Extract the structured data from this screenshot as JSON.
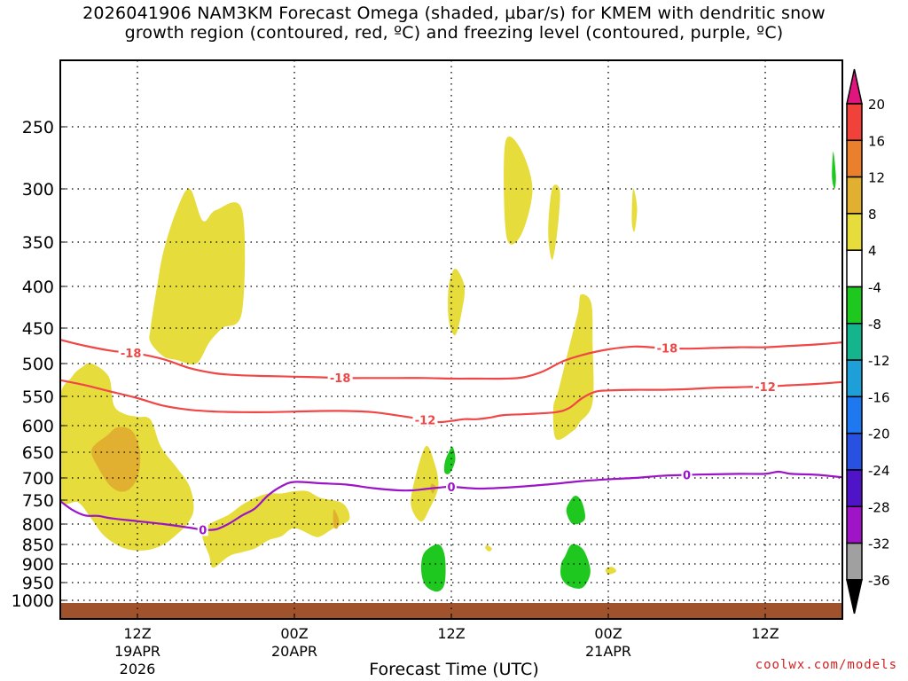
{
  "title": {
    "line1": "2026041906 NAM3KM Forecast Omega (shaded, µbar/s) for KMEM with dendritic snow",
    "line2": "growth region (contoured, red, ºC) and freezing level (contoured, purple, ºC)"
  },
  "credit": "coolwx.com/models",
  "chart_data": {
    "type": "time-height cross section",
    "xlabel": "Forecast Time (UTC)",
    "y_axis": {
      "unit": "hPa",
      "ticks": [
        250,
        300,
        350,
        400,
        450,
        500,
        550,
        600,
        650,
        700,
        750,
        800,
        850,
        900,
        950,
        1000
      ],
      "range": [
        200,
        1020
      ],
      "grid": "dotted"
    },
    "x_axis": {
      "range_hours_utc": [
        6,
        66
      ],
      "ticks": [
        {
          "hour": 12,
          "labels": [
            "12Z",
            "19APR",
            "2026"
          ]
        },
        {
          "hour": 24,
          "labels": [
            "00Z",
            "20APR"
          ]
        },
        {
          "hour": 36,
          "labels": [
            "12Z"
          ]
        },
        {
          "hour": 48,
          "labels": [
            "00Z",
            "21APR"
          ]
        },
        {
          "hour": 60,
          "labels": [
            "12Z"
          ]
        }
      ]
    },
    "colorbar": {
      "unit": "µbar/s",
      "labels": [
        "20",
        "16",
        "12",
        "8",
        "4",
        "-4",
        "-8",
        "-12",
        "-16",
        "-20",
        "-24",
        "-28",
        "-32",
        "-36"
      ],
      "colors": {
        "above_20": "#e0157d",
        "16_20": "#f0413a",
        "12_16": "#ea7f2c",
        "8_12": "#e1b030",
        "4_8": "#e6dc3c",
        "m4_4": "#ffffff",
        "m8_m4": "#1ec81e",
        "m12_m8": "#14b48c",
        "m16_m12": "#1e9fd7",
        "m20_m16": "#1e78ef",
        "m24_m20": "#2850e1",
        "m28_m24": "#5014c8",
        "m32_m28": "#a014c8",
        "m36_m32": "#a0a0a0",
        "below_m36": "#000000"
      }
    },
    "contours": {
      "minus18_C": {
        "label": "-18",
        "color": "#f04646",
        "points": [
          [
            6,
            466
          ],
          [
            8,
            475
          ],
          [
            10,
            482
          ],
          [
            12,
            486
          ],
          [
            14,
            494
          ],
          [
            16,
            507
          ],
          [
            18,
            515
          ],
          [
            20,
            518
          ],
          [
            22,
            519
          ],
          [
            24,
            520
          ],
          [
            26,
            521
          ],
          [
            28,
            522
          ],
          [
            30,
            522
          ],
          [
            32,
            522
          ],
          [
            34,
            522
          ],
          [
            36,
            523
          ],
          [
            38,
            523
          ],
          [
            40,
            523
          ],
          [
            41.5,
            521
          ],
          [
            43,
            512
          ],
          [
            44.5,
            497
          ],
          [
            46,
            488
          ],
          [
            48,
            480
          ],
          [
            50,
            476
          ],
          [
            52,
            478
          ],
          [
            54,
            479
          ],
          [
            56,
            478
          ],
          [
            58,
            477
          ],
          [
            60,
            477
          ],
          [
            62,
            475
          ],
          [
            64,
            473
          ],
          [
            66,
            470
          ]
        ]
      },
      "minus12_C": {
        "label": "-12",
        "color": "#f04646",
        "points": [
          [
            6,
            525
          ],
          [
            8,
            533
          ],
          [
            10,
            543
          ],
          [
            12,
            553
          ],
          [
            14,
            566
          ],
          [
            16,
            573
          ],
          [
            18,
            576
          ],
          [
            20,
            577
          ],
          [
            22,
            577
          ],
          [
            24,
            576
          ],
          [
            26,
            575
          ],
          [
            28,
            575
          ],
          [
            30,
            577
          ],
          [
            32,
            583
          ],
          [
            34,
            590
          ],
          [
            35,
            594
          ],
          [
            36,
            592
          ],
          [
            37,
            589
          ],
          [
            38,
            589
          ],
          [
            39,
            586
          ],
          [
            40,
            582
          ],
          [
            42,
            580
          ],
          [
            44,
            577
          ],
          [
            45,
            570
          ],
          [
            46,
            553
          ],
          [
            47,
            543
          ],
          [
            48,
            541
          ],
          [
            50,
            540
          ],
          [
            52,
            540
          ],
          [
            54,
            539
          ],
          [
            56,
            537
          ],
          [
            58,
            536
          ],
          [
            60,
            535
          ],
          [
            62,
            533
          ],
          [
            64,
            531
          ],
          [
            66,
            528
          ]
        ]
      },
      "freezing_level_0_C": {
        "label": "0",
        "color": "#9b14c8",
        "points": [
          [
            6,
            750
          ],
          [
            7,
            770
          ],
          [
            8,
            782
          ],
          [
            9,
            783
          ],
          [
            10,
            788
          ],
          [
            12,
            794
          ],
          [
            14,
            800
          ],
          [
            16,
            809
          ],
          [
            17,
            814
          ],
          [
            18,
            813
          ],
          [
            19,
            799
          ],
          [
            20,
            782
          ],
          [
            21,
            767
          ],
          [
            22,
            739
          ],
          [
            23,
            719
          ],
          [
            24,
            709
          ],
          [
            26,
            712
          ],
          [
            28,
            715
          ],
          [
            30,
            723
          ],
          [
            32,
            728
          ],
          [
            33,
            728
          ],
          [
            34,
            725
          ],
          [
            35,
            722
          ],
          [
            36,
            720
          ],
          [
            38,
            724
          ],
          [
            40,
            722
          ],
          [
            42,
            718
          ],
          [
            44,
            713
          ],
          [
            46,
            707
          ],
          [
            48,
            703
          ],
          [
            50,
            700
          ],
          [
            52,
            696
          ],
          [
            54,
            694
          ],
          [
            56,
            693
          ],
          [
            58,
            692
          ],
          [
            60,
            692
          ],
          [
            61,
            688
          ],
          [
            62,
            692
          ],
          [
            64,
            694
          ],
          [
            66,
            699
          ]
        ]
      }
    },
    "shaded_regions": [
      {
        "color": "#e6dc3c",
        "value_range": "4 to 8",
        "points": [
          [
            6,
            560
          ],
          [
            7,
            520
          ],
          [
            7.8,
            505
          ],
          [
            8.5,
            500
          ],
          [
            9.8,
            520
          ],
          [
            10.2,
            565
          ],
          [
            11,
            580
          ],
          [
            12,
            585
          ],
          [
            13,
            590
          ],
          [
            13.8,
            640
          ],
          [
            15,
            680
          ],
          [
            16,
            720
          ],
          [
            16.3,
            770
          ],
          [
            15.8,
            800
          ],
          [
            15.2,
            820
          ],
          [
            14,
            850
          ],
          [
            12.6,
            865
          ],
          [
            11,
            860
          ],
          [
            9.5,
            830
          ],
          [
            8.5,
            790
          ],
          [
            7.5,
            755
          ],
          [
            6,
            740
          ]
        ]
      },
      {
        "color": "#e6dc3c",
        "value_range": "4 to 8",
        "points": [
          [
            13,
            450
          ],
          [
            13.5,
            400
          ],
          [
            14,
            360
          ],
          [
            15,
            320
          ],
          [
            16,
            300
          ],
          [
            17,
            330
          ],
          [
            18,
            320
          ],
          [
            20,
            320
          ],
          [
            20,
            430
          ],
          [
            18.5,
            450
          ],
          [
            17.5,
            470
          ],
          [
            16.5,
            500
          ],
          [
            15,
            495
          ],
          [
            14,
            490
          ],
          [
            13,
            470
          ]
        ]
      },
      {
        "color": "#e6dc3c",
        "value_range": "4 to 8",
        "points": [
          [
            17,
            815
          ],
          [
            19,
            780
          ],
          [
            20,
            760
          ],
          [
            21,
            745
          ],
          [
            22,
            735
          ],
          [
            23,
            735
          ],
          [
            24,
            730
          ],
          [
            25,
            730
          ],
          [
            26,
            745
          ],
          [
            27.7,
            757
          ],
          [
            28.2,
            790
          ],
          [
            27,
            810
          ],
          [
            26,
            830
          ],
          [
            25.5,
            830
          ],
          [
            24,
            810
          ],
          [
            23,
            830
          ],
          [
            22,
            840
          ],
          [
            21,
            860
          ],
          [
            20,
            870
          ],
          [
            19,
            880
          ],
          [
            17.8,
            910
          ],
          [
            17.5,
            880
          ]
        ]
      },
      {
        "color": "#e6dc3c",
        "value_range": "4 to 8",
        "points": [
          [
            34,
            640
          ],
          [
            34.7,
            670
          ],
          [
            35,
            720
          ],
          [
            34.3,
            770
          ],
          [
            33.7,
            795
          ],
          [
            33,
            770
          ],
          [
            33,
            730
          ]
        ]
      },
      {
        "color": "#e6dc3c",
        "value_range": "4 to 8",
        "points": [
          [
            35.8,
            400
          ],
          [
            36.3,
            380
          ],
          [
            37,
            400
          ],
          [
            36.8,
            430
          ],
          [
            36.3,
            460
          ],
          [
            35.8,
            440
          ]
        ]
      },
      {
        "color": "#e6dc3c",
        "value_range": "4 to 8",
        "points": [
          [
            40.1,
            264
          ],
          [
            41.2,
            266
          ],
          [
            42.2,
            300
          ],
          [
            41.3,
            344
          ],
          [
            40.2,
            344
          ]
        ]
      },
      {
        "color": "#e6dc3c",
        "value_range": "4 to 8",
        "points": [
          [
            43.7,
            300
          ],
          [
            44.3,
            302
          ],
          [
            44.1,
            340
          ],
          [
            43.7,
            370
          ],
          [
            43.4,
            340
          ]
        ]
      },
      {
        "color": "#e6dc3c",
        "value_range": "4 to 8",
        "points": [
          [
            45.9,
            410
          ],
          [
            46.7,
            420
          ],
          [
            46.8,
            470
          ],
          [
            46.8,
            560
          ],
          [
            45.8,
            595
          ],
          [
            45.3,
            610
          ],
          [
            44,
            625
          ],
          [
            43.8,
            570
          ],
          [
            44.2,
            540
          ],
          [
            45.1,
            470
          ],
          [
            45.7,
            430
          ]
        ]
      },
      {
        "color": "#e6dc3c",
        "value_range": "4 to 8",
        "points": [
          [
            49.9,
            300
          ],
          [
            50.2,
            318
          ],
          [
            50,
            340
          ],
          [
            49.8,
            330
          ]
        ]
      },
      {
        "color": "#e6dc3c",
        "value_range": "4 to 8",
        "points": [
          [
            38.7,
            852
          ],
          [
            39.1,
            860
          ],
          [
            38.9,
            868
          ],
          [
            38.6,
            860
          ]
        ]
      },
      {
        "color": "#e6dc3c",
        "value_range": "4 to 8",
        "points": [
          [
            47.8,
            914
          ],
          [
            48.3,
            908
          ],
          [
            48.6,
            920
          ],
          [
            48,
            928
          ]
        ]
      },
      {
        "color": "#e1b030",
        "value_range": "8 to 12",
        "points": [
          [
            8.5,
            645
          ],
          [
            9.7,
            618
          ],
          [
            10.5,
            603
          ],
          [
            11.6,
            610
          ],
          [
            12.2,
            650
          ],
          [
            12,
            700
          ],
          [
            11.1,
            730
          ],
          [
            10,
            720
          ],
          [
            9,
            680
          ]
        ]
      },
      {
        "color": "#e1b030",
        "value_range": "8 to 12",
        "points": [
          [
            27,
            770
          ],
          [
            27.4,
            790
          ],
          [
            27.3,
            810
          ],
          [
            27,
            805
          ]
        ]
      },
      {
        "color": "#e1b030",
        "value_range": "8 to 12",
        "points": [
          [
            34.5,
            713
          ],
          [
            34.8,
            720
          ],
          [
            34.6,
            735
          ],
          [
            34.4,
            725
          ]
        ]
      },
      {
        "color": "#1ec81e",
        "value_range": "-8 to -4",
        "points": [
          [
            35.5,
            670
          ],
          [
            35.8,
            650
          ],
          [
            36.1,
            640
          ],
          [
            36.3,
            665
          ],
          [
            35.9,
            690
          ],
          [
            35.5,
            690
          ]
        ]
      },
      {
        "color": "#1ec81e",
        "value_range": "-8 to -4",
        "points": [
          [
            34,
            868
          ],
          [
            35,
            850
          ],
          [
            35.5,
            880
          ],
          [
            35.5,
            950
          ],
          [
            35,
            975
          ],
          [
            34.2,
            965
          ],
          [
            33.8,
            940
          ],
          [
            33.7,
            900
          ]
        ]
      },
      {
        "color": "#1ec81e",
        "value_range": "-8 to -4",
        "points": [
          [
            45,
            755
          ],
          [
            45.5,
            740
          ],
          [
            46,
            755
          ],
          [
            46.2,
            790
          ],
          [
            45.3,
            800
          ],
          [
            44.8,
            775
          ]
        ]
      },
      {
        "color": "#1ec81e",
        "value_range": "-8 to -4",
        "points": [
          [
            44.7,
            880
          ],
          [
            45.2,
            850
          ],
          [
            46,
            860
          ],
          [
            46.5,
            895
          ],
          [
            46.6,
            930
          ],
          [
            46,
            965
          ],
          [
            45,
            960
          ],
          [
            44.4,
            935
          ],
          [
            44.4,
            900
          ]
        ]
      },
      {
        "color": "#1ec81e",
        "value_range": "-8 to -4",
        "points": [
          [
            65.2,
            270
          ],
          [
            65.4,
            290
          ],
          [
            65.3,
            300
          ],
          [
            65.1,
            290
          ]
        ]
      }
    ]
  }
}
